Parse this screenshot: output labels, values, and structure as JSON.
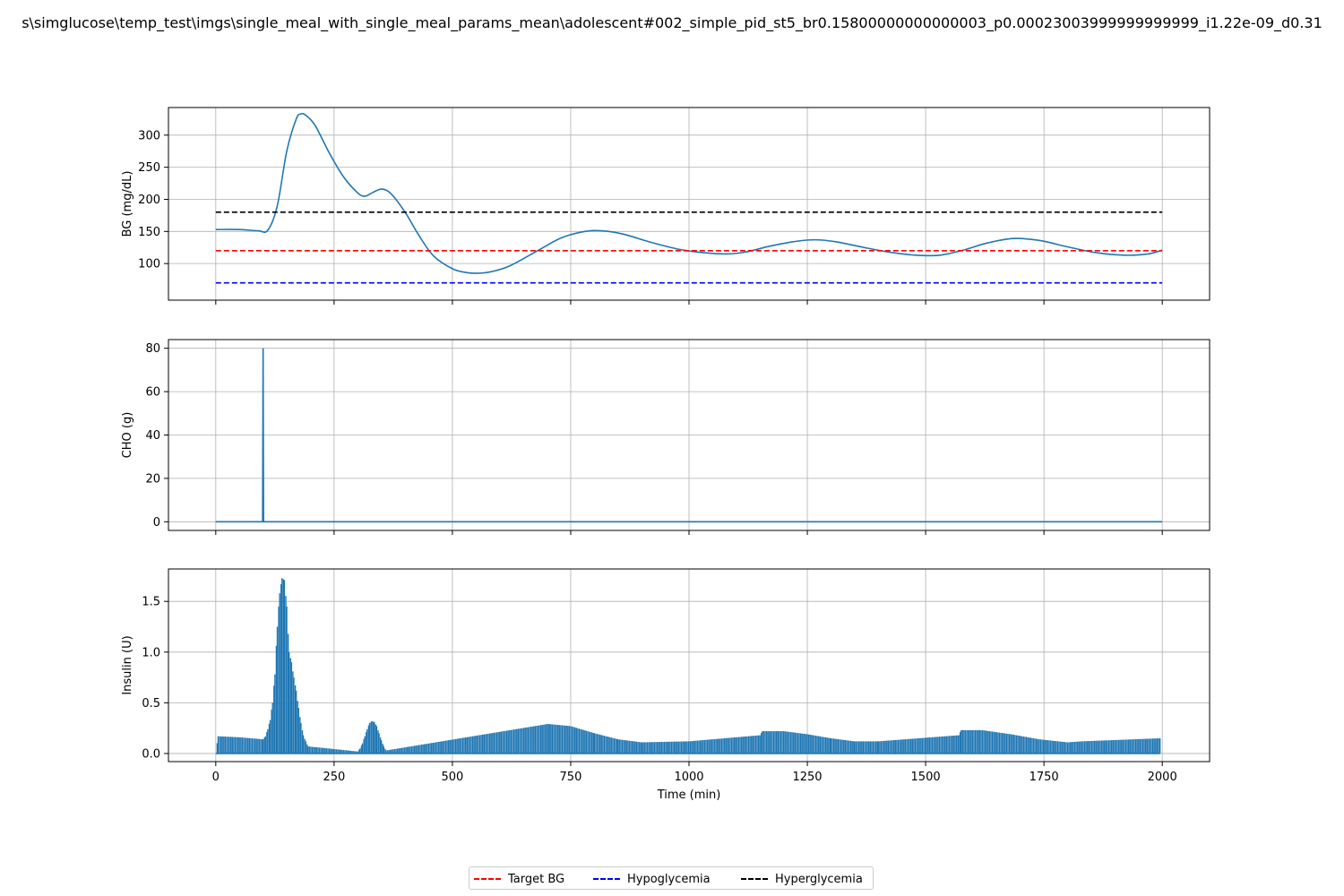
{
  "figure_title": "s\\simglucose\\temp_test\\imgs\\single_meal_with_single_meal_params_mean\\adolescent#002_simple_pid_st5_br0.15800000000000003_p0.00023003999999999999_i1.22e-09_d0.31",
  "legend": [
    {
      "label": "Target BG",
      "color": "#ff0000",
      "style": "dashed"
    },
    {
      "label": "Hypoglycemia",
      "color": "#0000ff",
      "style": "dashed"
    },
    {
      "label": "Hyperglycemia",
      "color": "#000000",
      "style": "dashed"
    }
  ],
  "chart_data": [
    {
      "type": "line",
      "ylabel": "BG (mg/dL)",
      "xlim": [
        -100,
        2100
      ],
      "ylim": [
        43,
        343
      ],
      "yticks": [
        100,
        150,
        200,
        250,
        300
      ],
      "xticks": [
        0,
        250,
        500,
        750,
        1000,
        1250,
        1500,
        1750,
        2000
      ],
      "grid": true,
      "series": [
        {
          "name": "BG",
          "color": "#1f77b4",
          "style": "solid",
          "x": [
            0,
            50,
            90,
            110,
            130,
            150,
            170,
            180,
            190,
            210,
            240,
            270,
            300,
            315,
            330,
            350,
            370,
            400,
            430,
            460,
            500,
            530,
            555,
            580,
            620,
            680,
            730,
            780,
            815,
            860,
            920,
            980,
            1030,
            1080,
            1120,
            1170,
            1220,
            1265,
            1310,
            1370,
            1430,
            1480,
            1530,
            1580,
            1630,
            1685,
            1740,
            1800,
            1860,
            1920,
            1970,
            2000
          ],
          "y": [
            153,
            153,
            151,
            152,
            190,
            275,
            325,
            333,
            331,
            315,
            272,
            235,
            210,
            205,
            210,
            216,
            209,
            180,
            143,
            112,
            92,
            86,
            85,
            87,
            96,
            120,
            140,
            150,
            151,
            146,
            133,
            122,
            117,
            115,
            118,
            127,
            134,
            137,
            134,
            125,
            117,
            113,
            113,
            121,
            132,
            139,
            136,
            126,
            117,
            113,
            115,
            121
          ]
        },
        {
          "name": "Target BG",
          "color": "#ff0000",
          "style": "dashed",
          "x": [
            0,
            2000
          ],
          "y": [
            120,
            120
          ]
        },
        {
          "name": "Hypoglycemia",
          "color": "#0000ff",
          "style": "dashed",
          "x": [
            0,
            2000
          ],
          "y": [
            70,
            70
          ]
        },
        {
          "name": "Hyperglycemia",
          "color": "#000000",
          "style": "dashed",
          "x": [
            0,
            2000
          ],
          "y": [
            180,
            180
          ]
        }
      ]
    },
    {
      "type": "line",
      "ylabel": "CHO (g)",
      "xlim": [
        -100,
        2100
      ],
      "ylim": [
        -4,
        84
      ],
      "yticks": [
        0,
        20,
        40,
        60,
        80
      ],
      "xticks": [
        0,
        250,
        500,
        750,
        1000,
        1250,
        1500,
        1750,
        2000
      ],
      "grid": true,
      "series": [
        {
          "name": "CHO",
          "color": "#1f77b4",
          "style": "solid",
          "x": [
            0,
            99,
            100,
            101,
            2000
          ],
          "y": [
            0,
            0,
            80,
            0,
            0
          ]
        }
      ]
    },
    {
      "type": "bar",
      "ylabel": "Insulin (U)",
      "xlabel": "Time (min)",
      "xlim": [
        -100,
        2100
      ],
      "ylim": [
        -0.08,
        1.82
      ],
      "yticks": [
        0.0,
        0.5,
        1.0,
        1.5
      ],
      "xticks": [
        0,
        250,
        500,
        750,
        1000,
        1250,
        1500,
        1750,
        2000
      ],
      "grid": true,
      "series": [
        {
          "name": "Insulin",
          "color": "#1f77b4",
          "style": "solid",
          "x": [
            0,
            5,
            50,
            100,
            105,
            110,
            115,
            120,
            125,
            130,
            135,
            140,
            145,
            150,
            155,
            160,
            165,
            170,
            175,
            180,
            185,
            190,
            195,
            300,
            305,
            310,
            315,
            320,
            325,
            330,
            335,
            340,
            345,
            350,
            355,
            360,
            700,
            705,
            750,
            800,
            850,
            900,
            1000,
            1150,
            1155,
            1200,
            1250,
            1300,
            1350,
            1400,
            1570,
            1575,
            1620,
            1680,
            1740,
            1800,
            1830,
            1995
          ],
          "y": [
            0,
            0.17,
            0.16,
            0.14,
            0.17,
            0.24,
            0.33,
            0.5,
            0.78,
            1.25,
            1.58,
            1.73,
            1.71,
            1.45,
            1.0,
            0.9,
            0.75,
            0.62,
            0.45,
            0.3,
            0.18,
            0.12,
            0.07,
            0.02,
            0.05,
            0.1,
            0.17,
            0.24,
            0.3,
            0.32,
            0.31,
            0.27,
            0.2,
            0.13,
            0.07,
            0.03,
            0.29,
            0.29,
            0.27,
            0.2,
            0.14,
            0.11,
            0.12,
            0.18,
            0.22,
            0.22,
            0.19,
            0.15,
            0.12,
            0.12,
            0.18,
            0.23,
            0.23,
            0.19,
            0.14,
            0.11,
            0.12,
            0.15
          ]
        }
      ]
    }
  ]
}
